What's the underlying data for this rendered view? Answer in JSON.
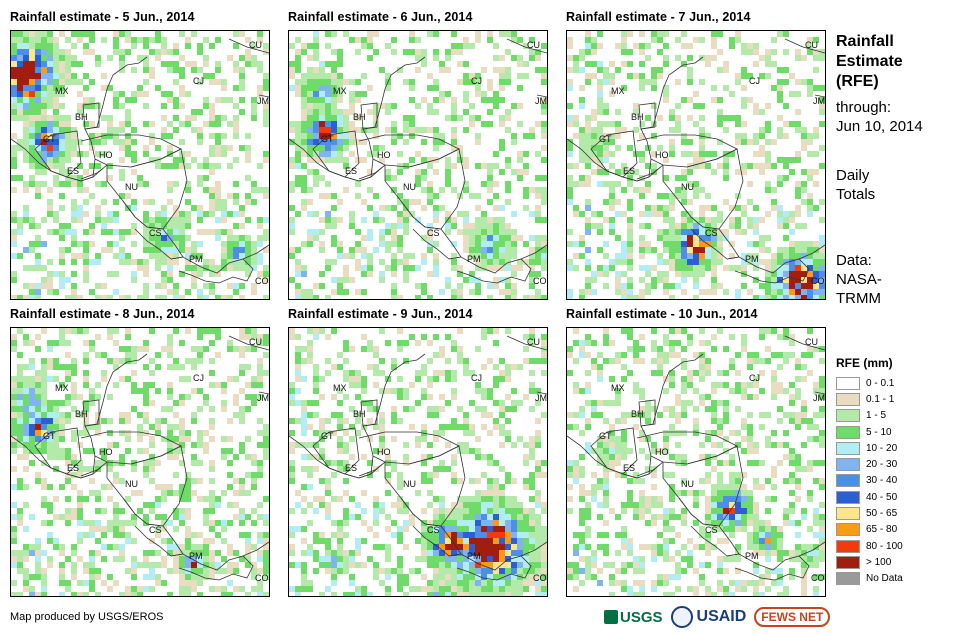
{
  "panels": [
    {
      "title": "Rainfall estimate - 5 Jun., 2014",
      "seed": 5,
      "heavy": "west"
    },
    {
      "title": "Rainfall estimate - 6 Jun., 2014",
      "seed": 6,
      "heavy": "guatemala"
    },
    {
      "title": "Rainfall estimate - 7 Jun., 2014",
      "seed": 7,
      "heavy": "costarica-panama"
    },
    {
      "title": "Rainfall estimate - 8 Jun., 2014",
      "seed": 8,
      "heavy": "west-light"
    },
    {
      "title": "Rainfall estimate - 9 Jun., 2014",
      "seed": 9,
      "heavy": "costarica-band"
    },
    {
      "title": "Rainfall estimate - 10 Jun., 2014",
      "seed": 10,
      "heavy": "nicaragua-coast"
    }
  ],
  "country_codes": [
    "MX",
    "BH",
    "GT",
    "HO",
    "ES",
    "NU",
    "CS",
    "PM",
    "CO",
    "CU",
    "CJ",
    "JM"
  ],
  "sidebar": {
    "title_lines": [
      "Rainfall",
      "Estimate",
      "(RFE)"
    ],
    "through_lines": [
      "through:",
      "Jun 10, 2014"
    ],
    "daily_lines": [
      "Daily",
      "Totals"
    ],
    "data_lines": [
      "Data:",
      "NASA-",
      "TRMM"
    ]
  },
  "legend": {
    "title": "RFE (mm)",
    "items": [
      {
        "label": "0 - 0.1",
        "color": "#ffffff"
      },
      {
        "label": "0.1 - 1",
        "color": "#e9dcc0"
      },
      {
        "label": "1 - 5",
        "color": "#b4eaa9"
      },
      {
        "label": "5 - 10",
        "color": "#6fdc6a"
      },
      {
        "label": "10 - 20",
        "color": "#b2ecf5"
      },
      {
        "label": "20 - 30",
        "color": "#80b4f0"
      },
      {
        "label": "30 - 40",
        "color": "#4d8fe6"
      },
      {
        "label": "40 - 50",
        "color": "#2a5fd6"
      },
      {
        "label": "50 - 65",
        "color": "#fde58c"
      },
      {
        "label": "65 - 80",
        "color": "#fb9a14"
      },
      {
        "label": "80 - 100",
        "color": "#f33a0c"
      },
      {
        "label": "> 100",
        "color": "#a31d0f"
      },
      {
        "label": "No Data",
        "color": "#9a9a9a"
      }
    ]
  },
  "credit": "Map produced by USGS/EROS",
  "logos": {
    "usgs": "USGS",
    "usaid": "USAID",
    "fews": "FEWS NET"
  }
}
